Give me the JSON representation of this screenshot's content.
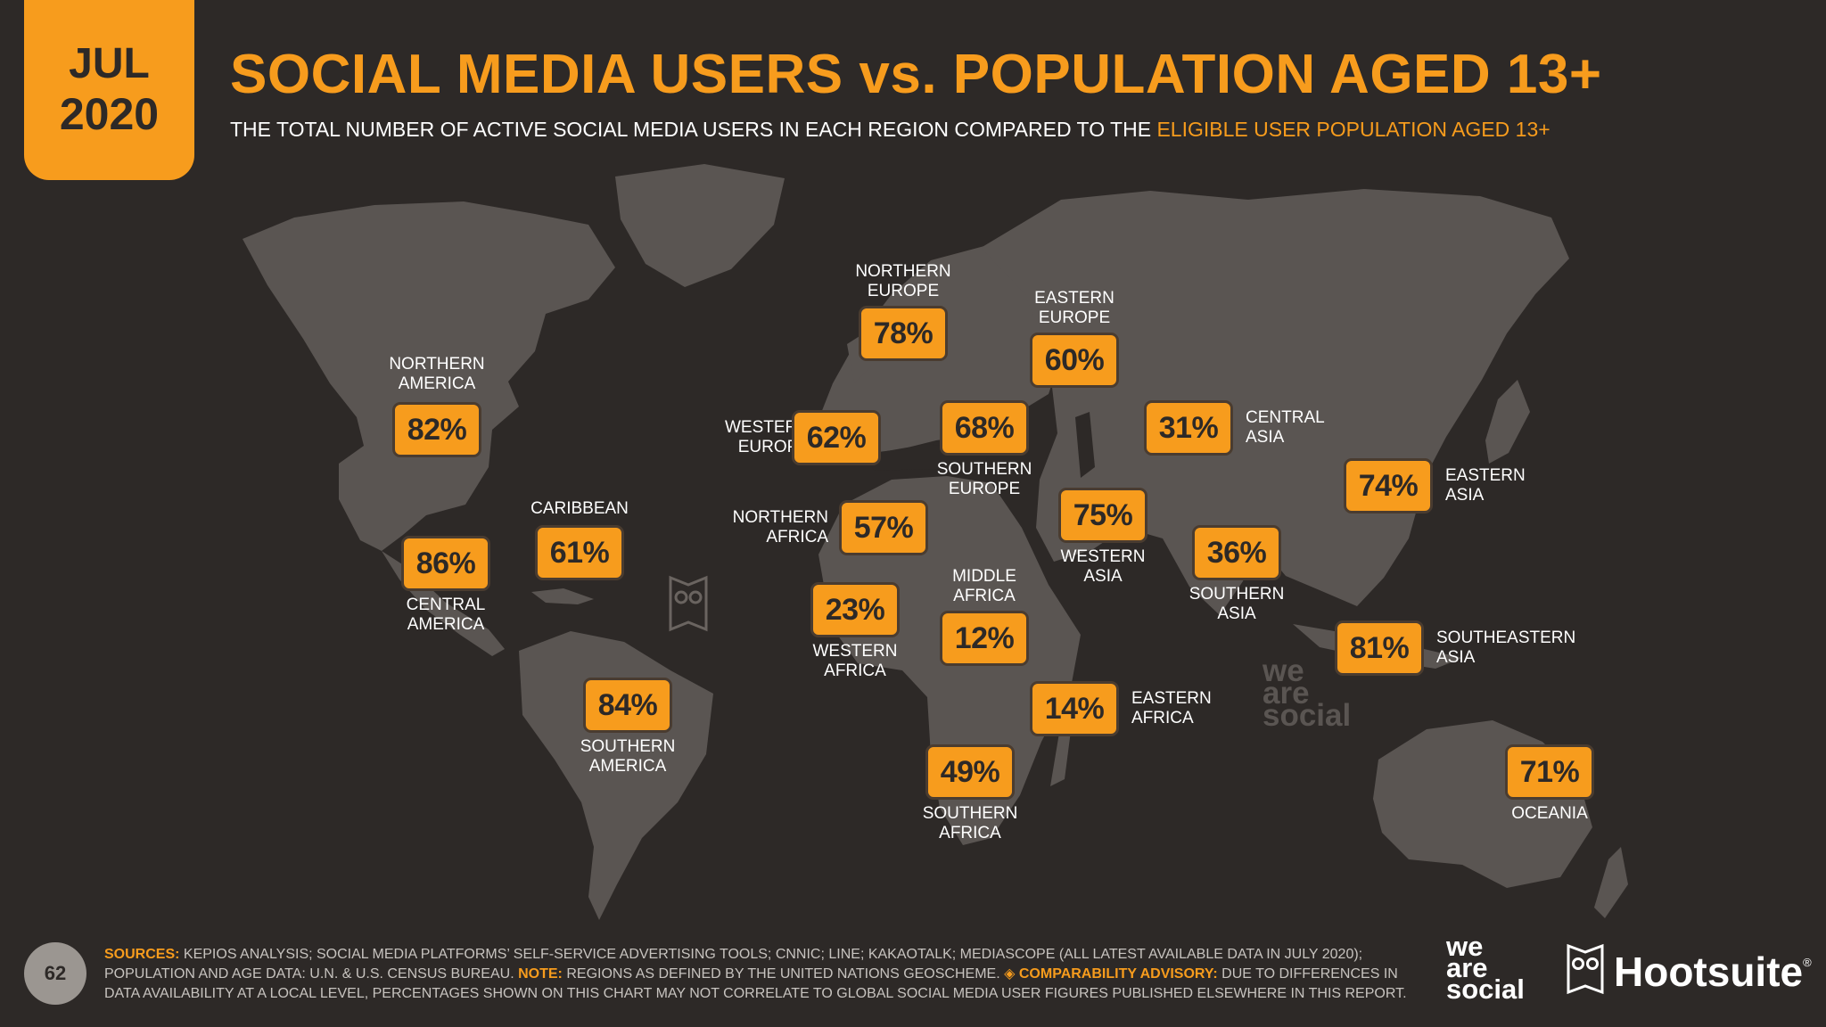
{
  "header": {
    "month": "JUL",
    "year": "2020",
    "title": "SOCIAL MEDIA USERS vs. POPULATION AGED 13+",
    "subtitle_main": "THE TOTAL NUMBER OF ACTIVE SOCIAL MEDIA USERS IN EACH REGION COMPARED TO THE",
    "subtitle_highlight": "ELIGIBLE USER POPULATION AGED 13+"
  },
  "regions": [
    {
      "name": "NORTHERN\nAMERICA",
      "value": "82%"
    },
    {
      "name": "CENTRAL\nAMERICA",
      "value": "86%"
    },
    {
      "name": "CARIBBEAN",
      "value": "61%"
    },
    {
      "name": "SOUTHERN\nAMERICA",
      "value": "84%"
    },
    {
      "name": "NORTHERN\nEUROPE",
      "value": "78%"
    },
    {
      "name": "WESTERN\nEUROPE",
      "value": "62%"
    },
    {
      "name": "SOUTHERN\nEUROPE",
      "value": "68%"
    },
    {
      "name": "EASTERN\nEUROPE",
      "value": "60%"
    },
    {
      "name": "NORTHERN\nAFRICA",
      "value": "57%"
    },
    {
      "name": "WESTERN\nAFRICA",
      "value": "23%"
    },
    {
      "name": "MIDDLE\nAFRICA",
      "value": "12%"
    },
    {
      "name": "EASTERN\nAFRICA",
      "value": "14%"
    },
    {
      "name": "SOUTHERN\nAFRICA",
      "value": "49%"
    },
    {
      "name": "WESTERN\nASIA",
      "value": "75%"
    },
    {
      "name": "CENTRAL\nASIA",
      "value": "31%"
    },
    {
      "name": "SOUTHERN\nASIA",
      "value": "36%"
    },
    {
      "name": "EASTERN\nASIA",
      "value": "74%"
    },
    {
      "name": "SOUTHEASTERN\nASIA",
      "value": "81%"
    },
    {
      "name": "OCEANIA",
      "value": "71%"
    }
  ],
  "footer": {
    "page_number": "62",
    "sources_label": "SOURCES:",
    "sources_text": "KEPIOS ANALYSIS; SOCIAL MEDIA PLATFORMS’ SELF-SERVICE ADVERTISING TOOLS; CNNIC; LINE; KAKAOTALK; MEDIASCOPE (ALL LATEST AVAILABLE DATA IN JULY 2020); POPULATION AND AGE DATA: U.N. & U.S. CENSUS BUREAU.",
    "note_label": "NOTE:",
    "note_text": "REGIONS AS DEFINED BY THE UNITED NATIONS GEOSCHEME.",
    "advisory_label": "COMPARABILITY ADVISORY:",
    "advisory_text": "DUE TO DIFFERENCES IN DATA AVAILABILITY AT A LOCAL LEVEL, PERCENTAGES SHOWN ON THIS CHART MAY NOT CORRELATE TO GLOBAL SOCIAL MEDIA USER FIGURES PUBLISHED ELSEWHERE IN THIS REPORT."
  },
  "branding": {
    "watermark": "we\nare\nsocial",
    "we_are_social": "we\nare\nsocial",
    "hootsuite": "Hootsuite",
    "registered": "®"
  },
  "colors": {
    "background": "#2d2927",
    "accent": "#f79c1d",
    "land": "#5a5552",
    "text": "#ffffff"
  },
  "icons": [
    "owl-icon",
    "diamond-icon"
  ]
}
